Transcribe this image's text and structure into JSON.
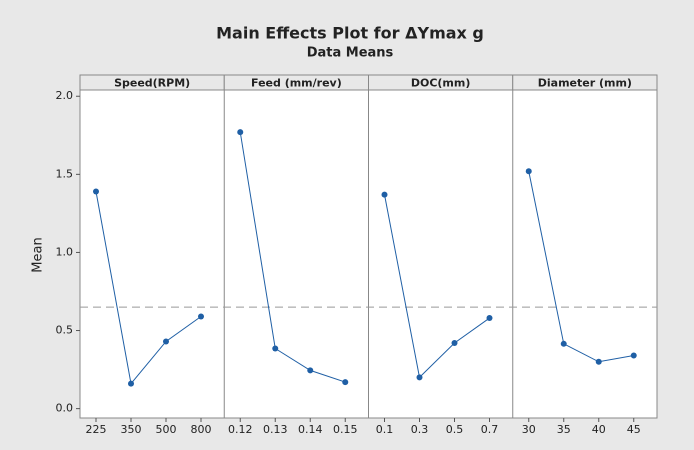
{
  "title": "Main Effects Plot for ΔYmax g",
  "subtitle": "Data Means",
  "y_label": "Mean",
  "reference_line": 0.65,
  "chart_data": [
    {
      "type": "line",
      "title": "Speed(RPM)",
      "categories": [
        "225",
        "350",
        "500",
        "800"
      ],
      "values": [
        1.39,
        0.16,
        0.43,
        0.59
      ],
      "color": "#1f5fa5",
      "ylim": [
        -0.06,
        2.04
      ],
      "yticks": [
        {
          "value": 0,
          "label": "0.0"
        },
        0.5,
        {
          "value": 1,
          "label": "1.0"
        },
        1.5,
        {
          "value": 2,
          "label": "2.0"
        }
      ]
    },
    {
      "type": "line",
      "title": "Feed (mm/rev)",
      "categories": [
        "0.12",
        "0.13",
        "0.14",
        "0.15"
      ],
      "values": [
        1.77,
        0.385,
        0.245,
        0.17
      ],
      "color": "#1f5fa5",
      "ylim": [
        -0.06,
        2.04
      ]
    },
    {
      "type": "line",
      "title": "DOC(mm)",
      "categories": [
        "0.1",
        "0.3",
        "0.5",
        "0.7"
      ],
      "values": [
        1.37,
        0.2,
        0.42,
        0.58
      ],
      "color": "#1f5fa5",
      "ylim": [
        -0.06,
        2.04
      ]
    },
    {
      "type": "line",
      "title": "Diameter (mm)",
      "categories": [
        "30",
        "35",
        "40",
        "45"
      ],
      "values": [
        1.52,
        0.415,
        0.3,
        0.34
      ],
      "color": "#1f5fa5",
      "ylim": [
        -0.06,
        2.04
      ]
    }
  ]
}
